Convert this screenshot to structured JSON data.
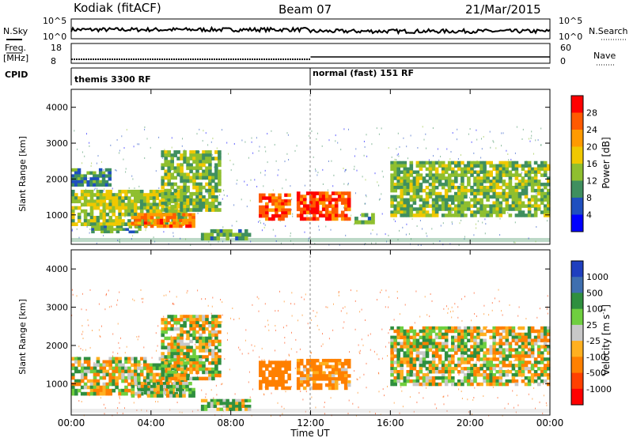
{
  "header": {
    "station": "Kodiak (fitACF)",
    "beam": "Beam 07",
    "date": "21/Mar/2015"
  },
  "top_panels": {
    "nsky_label": "N.Sky",
    "nsky_ticks": [
      "10^5",
      "10^0"
    ],
    "nsearch_label": "N.Search",
    "nsearch_ticks": [
      "10^5",
      "10^0"
    ],
    "freq_label": "Freq.",
    "freq_unit": "[MHz]",
    "freq_ticks": [
      "18",
      "8"
    ],
    "nave_label": "Nave",
    "nave_ticks": [
      "60",
      "0"
    ],
    "cpid_label": "CPID",
    "cpid_segments": [
      {
        "label": "themis 3300 RF",
        "start_hour": 0
      },
      {
        "label": "normal (fast) 151 RF",
        "start_hour": 12
      }
    ]
  },
  "colorbars": {
    "power": {
      "label": "Power [dB]",
      "ticks": [
        "28",
        "24",
        "20",
        "16",
        "12",
        "8",
        "4"
      ],
      "colors": [
        "#ff0000",
        "#ff5a00",
        "#ff9a00",
        "#f0c800",
        "#8fbf2f",
        "#3f8f5f",
        "#1f4fbf",
        "#0000ff"
      ]
    },
    "velocity": {
      "label": "Velocity [m s",
      "label_sup": "-1",
      "label_end": "]",
      "ticks": [
        "1000",
        "500",
        "100",
        "25",
        "-25",
        "-100",
        "-500",
        "-1000"
      ],
      "colors": [
        "#1f3fbf",
        "#3f6faf",
        "#2f8f3f",
        "#6fcf3f",
        "#c8c8c8",
        "#ffb020",
        "#ff8000",
        "#ff4000",
        "#ff0000"
      ]
    }
  },
  "chart_data": [
    {
      "type": "heatmap",
      "panel": "power",
      "ylabel": "Slant Range [km]",
      "ylim": [
        180,
        4500
      ],
      "yticks": [
        1000,
        2000,
        3000,
        4000
      ],
      "xlim": [
        0,
        24
      ],
      "xticks": [
        0,
        4,
        8,
        12,
        16,
        20,
        24
      ],
      "zlim": [
        0,
        30
      ],
      "regions": [
        {
          "t": [
            0.0,
            5.8
          ],
          "r": [
            700,
            1700
          ],
          "value": 14
        },
        {
          "t": [
            3.0,
            6.2
          ],
          "r": [
            650,
            1050
          ],
          "value": 24
        },
        {
          "t": [
            1.0,
            3.5
          ],
          "r": [
            500,
            700
          ],
          "value": 10
        },
        {
          "t": [
            4.5,
            7.5
          ],
          "r": [
            1100,
            2800
          ],
          "value": 12
        },
        {
          "t": [
            9.4,
            11.0
          ],
          "r": [
            850,
            1600
          ],
          "value": 26
        },
        {
          "t": [
            11.3,
            14.0
          ],
          "r": [
            850,
            1650
          ],
          "value": 27
        },
        {
          "t": [
            14.2,
            15.2
          ],
          "r": [
            750,
            1050
          ],
          "value": 10
        },
        {
          "t": [
            16.0,
            24.0
          ],
          "r": [
            950,
            2500
          ],
          "value": 12
        },
        {
          "t": [
            6.5,
            9.0
          ],
          "r": [
            300,
            600
          ],
          "value": 10
        },
        {
          "t": [
            0.0,
            2.0
          ],
          "r": [
            1800,
            2300
          ],
          "value": 8
        }
      ]
    },
    {
      "type": "heatmap",
      "panel": "velocity",
      "ylabel": "Slant Range [km]",
      "ylim": [
        180,
        4500
      ],
      "yticks": [
        1000,
        2000,
        3000,
        4000
      ],
      "xlim": [
        0,
        24
      ],
      "xticks": [
        0,
        4,
        8,
        12,
        16,
        20,
        24
      ],
      "zlim": [
        -1000,
        1000
      ],
      "regions": [
        {
          "t": [
            0.0,
            5.8
          ],
          "r": [
            700,
            1700
          ],
          "value": 0
        },
        {
          "t": [
            3.0,
            6.2
          ],
          "r": [
            650,
            1050
          ],
          "value": 80
        },
        {
          "t": [
            4.5,
            7.5
          ],
          "r": [
            1100,
            2800
          ],
          "value": 0
        },
        {
          "t": [
            9.4,
            11.0
          ],
          "r": [
            850,
            1600
          ],
          "value": -300
        },
        {
          "t": [
            11.3,
            14.0
          ],
          "r": [
            850,
            1650
          ],
          "value": -200
        },
        {
          "t": [
            16.0,
            24.0
          ],
          "r": [
            950,
            2500
          ],
          "value": 0
        },
        {
          "t": [
            6.5,
            9.0
          ],
          "r": [
            300,
            600
          ],
          "value": 60
        }
      ]
    }
  ],
  "xaxis": {
    "label": "Time UT",
    "tick_labels": [
      "00:00",
      "04:00",
      "08:00",
      "12:00",
      "16:00",
      "20:00",
      "00:00"
    ]
  }
}
